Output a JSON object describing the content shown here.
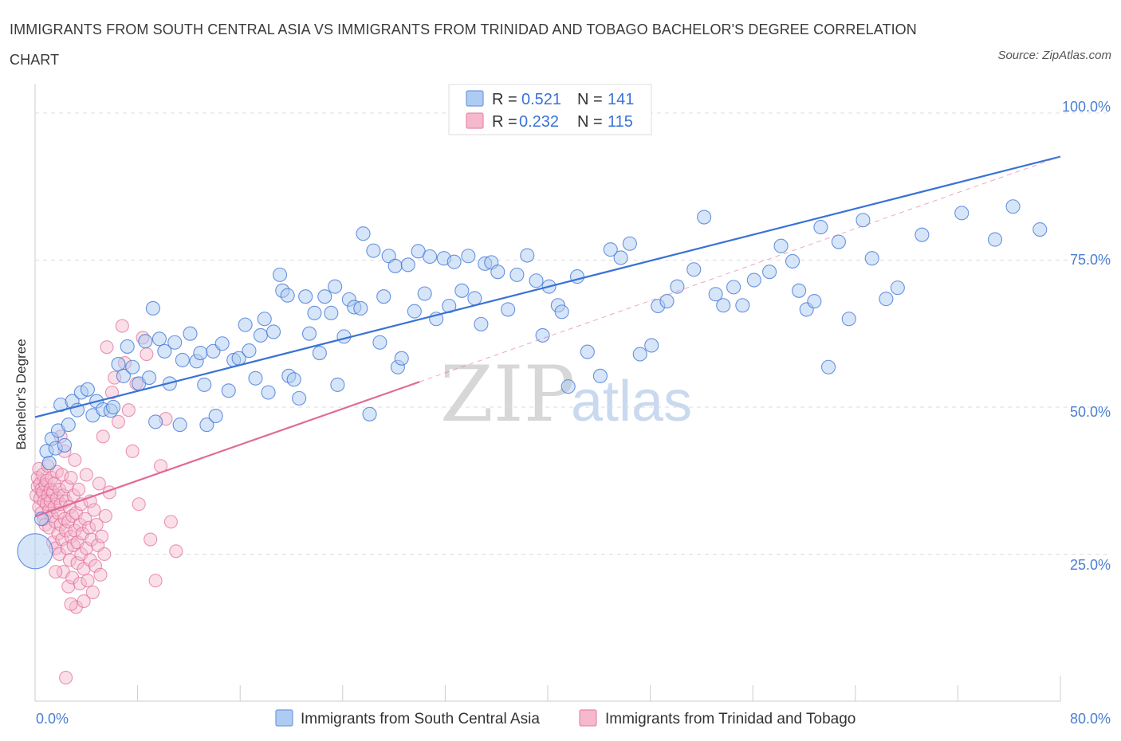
{
  "title": "IMMIGRANTS FROM SOUTH CENTRAL ASIA VS IMMIGRANTS FROM TRINIDAD AND TOBAGO BACHELOR'S DEGREE CORRELATION CHART",
  "source": "Source: ZipAtlas.com",
  "colors": {
    "blue": "#3a72d6",
    "blue_fill": "#aecbf2",
    "pink": "#e06b98",
    "pink_fill": "#f5b8cc",
    "tick_text": "#4a7fd4",
    "grid": "#dddddd"
  },
  "legend": {
    "rows": [
      {
        "r_label": "R =",
        "r_value": "0.521",
        "n_label": "N =",
        "n_value": "141"
      },
      {
        "r_label": "R =",
        "r_value": "0.232",
        "n_label": "N =",
        "n_value": "115"
      }
    ]
  },
  "bottom_legend": {
    "series1": "Immigrants from South Central Asia",
    "series2": "Immigrants from Trinidad and Tobago"
  },
  "watermark": {
    "part1": "ZIP",
    "part2": "atlas"
  },
  "chart_data": {
    "type": "scatter",
    "title": "IMMIGRANTS FROM SOUTH CENTRAL ASIA VS IMMIGRANTS FROM TRINIDAD AND TOBAGO BACHELOR'S DEGREE CORRELATION CHART",
    "xlabel": "",
    "ylabel": "Bachelor's Degree",
    "xlim": [
      0,
      80
    ],
    "ylim": [
      0,
      105
    ],
    "x_tick_labels": [
      "0.0%",
      "80.0%"
    ],
    "y_tick_labels": [
      "25.0%",
      "50.0%",
      "75.0%",
      "100.0%"
    ],
    "y_ticks": [
      25,
      50,
      75,
      100
    ],
    "grid": true,
    "legend_position": "top-center",
    "series": [
      {
        "name": "Immigrants from South Central Asia",
        "color": "#3a72d6",
        "R": 0.521,
        "N": 141,
        "trend": {
          "x": [
            0,
            80
          ],
          "y": [
            48.3,
            92.6
          ],
          "dashed_x_to": null
        },
        "points": [
          [
            0,
            25.5
          ],
          [
            0.5,
            31
          ],
          [
            0.9,
            42.5
          ],
          [
            1.1,
            40.5
          ],
          [
            1.3,
            44.6
          ],
          [
            1.6,
            43
          ],
          [
            1.8,
            46
          ],
          [
            2,
            50.4
          ],
          [
            2.3,
            43.5
          ],
          [
            2.6,
            47
          ],
          [
            2.9,
            51
          ],
          [
            3.3,
            49.5
          ],
          [
            3.6,
            52.5
          ],
          [
            4.1,
            53
          ],
          [
            4.5,
            48.6
          ],
          [
            4.8,
            51
          ],
          [
            5.3,
            49.6
          ],
          [
            5.9,
            49.4
          ],
          [
            6.1,
            50
          ],
          [
            6.5,
            57.3
          ],
          [
            6.9,
            55.3
          ],
          [
            7.2,
            60.3
          ],
          [
            7.6,
            56.8
          ],
          [
            8.1,
            54
          ],
          [
            8.6,
            61.2
          ],
          [
            8.9,
            55
          ],
          [
            9.2,
            66.8
          ],
          [
            9.4,
            47.5
          ],
          [
            9.7,
            61.6
          ],
          [
            10.1,
            59.5
          ],
          [
            10.5,
            54
          ],
          [
            10.9,
            61
          ],
          [
            11.3,
            47
          ],
          [
            11.5,
            58
          ],
          [
            12.1,
            62.5
          ],
          [
            12.6,
            57.8
          ],
          [
            12.9,
            59.2
          ],
          [
            13.2,
            53.8
          ],
          [
            13.4,
            47
          ],
          [
            13.9,
            59.5
          ],
          [
            14.1,
            48.5
          ],
          [
            14.6,
            60.8
          ],
          [
            15.1,
            52.8
          ],
          [
            15.5,
            58
          ],
          [
            15.9,
            58.3
          ],
          [
            16.4,
            64
          ],
          [
            16.7,
            59.6
          ],
          [
            17.2,
            54.9
          ],
          [
            17.6,
            62.2
          ],
          [
            17.9,
            65
          ],
          [
            18.2,
            52.5
          ],
          [
            18.6,
            62.8
          ],
          [
            19.1,
            72.5
          ],
          [
            19.3,
            69.8
          ],
          [
            19.7,
            69
          ],
          [
            19.8,
            55.3
          ],
          [
            20.2,
            54.7
          ],
          [
            20.6,
            51.5
          ],
          [
            21.1,
            68.8
          ],
          [
            21.4,
            62.5
          ],
          [
            21.8,
            66
          ],
          [
            22.2,
            59.2
          ],
          [
            22.6,
            68.8
          ],
          [
            23.1,
            66
          ],
          [
            23.4,
            70.5
          ],
          [
            23.6,
            53.8
          ],
          [
            24.1,
            62
          ],
          [
            24.5,
            68.3
          ],
          [
            24.9,
            67
          ],
          [
            25.4,
            66.8
          ],
          [
            25.6,
            79.5
          ],
          [
            26.1,
            48.8
          ],
          [
            26.4,
            76.6
          ],
          [
            26.9,
            61
          ],
          [
            27.2,
            68.8
          ],
          [
            27.6,
            75.7
          ],
          [
            28.1,
            74
          ],
          [
            28.3,
            56.8
          ],
          [
            28.6,
            58.3
          ],
          [
            29.1,
            74.2
          ],
          [
            29.6,
            66.3
          ],
          [
            29.9,
            76.5
          ],
          [
            30.4,
            69.3
          ],
          [
            30.8,
            75.6
          ],
          [
            31.3,
            65
          ],
          [
            31.9,
            75.3
          ],
          [
            32.3,
            67.2
          ],
          [
            32.7,
            74.7
          ],
          [
            33.3,
            69.8
          ],
          [
            33.8,
            75.7
          ],
          [
            34.3,
            68.5
          ],
          [
            34.8,
            64.1
          ],
          [
            35.1,
            74.4
          ],
          [
            35.6,
            74.6
          ],
          [
            36.1,
            73
          ],
          [
            36.9,
            66.6
          ],
          [
            37.6,
            72.5
          ],
          [
            38.4,
            75.8
          ],
          [
            39.1,
            71.5
          ],
          [
            39.6,
            62.2
          ],
          [
            40.1,
            70.5
          ],
          [
            40.8,
            67.3
          ],
          [
            41.1,
            66.2
          ],
          [
            41.6,
            53.5
          ],
          [
            42.3,
            72.2
          ],
          [
            43.1,
            59.4
          ],
          [
            44.1,
            55.3
          ],
          [
            44.9,
            76.8
          ],
          [
            45.7,
            75.4
          ],
          [
            46.4,
            77.8
          ],
          [
            47.2,
            59
          ],
          [
            48.1,
            60.5
          ],
          [
            48.6,
            67.2
          ],
          [
            49.3,
            68
          ],
          [
            50.1,
            70.5
          ],
          [
            51.4,
            73.4
          ],
          [
            52.2,
            82.3
          ],
          [
            53.1,
            69.2
          ],
          [
            53.7,
            67.3
          ],
          [
            54.5,
            70.4
          ],
          [
            55.2,
            67.3
          ],
          [
            56.1,
            71.6
          ],
          [
            57.3,
            73
          ],
          [
            58.2,
            77.4
          ],
          [
            59.1,
            74.8
          ],
          [
            59.6,
            69.8
          ],
          [
            60.2,
            66.6
          ],
          [
            60.8,
            68
          ],
          [
            61.3,
            80.6
          ],
          [
            61.9,
            56.8
          ],
          [
            62.7,
            78.1
          ],
          [
            63.5,
            65
          ],
          [
            64.6,
            81.8
          ],
          [
            65.3,
            75.3
          ],
          [
            66.4,
            68.4
          ],
          [
            67.3,
            70.3
          ],
          [
            69.2,
            79.3
          ],
          [
            72.3,
            83
          ],
          [
            74.9,
            78.5
          ],
          [
            76.3,
            84.1
          ],
          [
            78.4,
            80.2
          ]
        ]
      },
      {
        "name": "Immigrants from Trinidad and Tobago",
        "color": "#e06b98",
        "R": 0.232,
        "N": 115,
        "trend": {
          "x": [
            0,
            30
          ],
          "y": [
            31.4,
            54.3
          ],
          "dashed_x_to": 80,
          "dashed_y_end": 92.6
        },
        "points": [
          [
            0.1,
            35
          ],
          [
            0.2,
            36.5
          ],
          [
            0.2,
            38
          ],
          [
            0.3,
            33
          ],
          [
            0.3,
            39.5
          ],
          [
            0.4,
            34.5
          ],
          [
            0.4,
            37
          ],
          [
            0.5,
            36
          ],
          [
            0.5,
            32
          ],
          [
            0.6,
            35.5
          ],
          [
            0.6,
            38.5
          ],
          [
            0.7,
            31
          ],
          [
            0.7,
            34
          ],
          [
            0.8,
            36.8
          ],
          [
            0.8,
            30
          ],
          [
            0.9,
            33.5
          ],
          [
            0.9,
            37.5
          ],
          [
            1.0,
            35
          ],
          [
            1.0,
            40
          ],
          [
            1.1,
            32.5
          ],
          [
            1.1,
            29.5
          ],
          [
            1.2,
            36
          ],
          [
            1.2,
            34
          ],
          [
            1.3,
            38
          ],
          [
            1.3,
            31.5
          ],
          [
            1.4,
            27
          ],
          [
            1.4,
            35.5
          ],
          [
            1.5,
            33
          ],
          [
            1.5,
            37
          ],
          [
            1.6,
            30.5
          ],
          [
            1.6,
            26
          ],
          [
            1.7,
            34.5
          ],
          [
            1.7,
            39
          ],
          [
            1.8,
            28.5
          ],
          [
            1.8,
            32
          ],
          [
            1.9,
            36
          ],
          [
            1.9,
            25
          ],
          [
            2.0,
            30
          ],
          [
            2.0,
            33.5
          ],
          [
            2.1,
            38.5
          ],
          [
            2.1,
            27.5
          ],
          [
            2.2,
            35
          ],
          [
            2.2,
            22
          ],
          [
            2.3,
            31
          ],
          [
            2.3,
            42.5
          ],
          [
            2.4,
            29
          ],
          [
            2.4,
            34
          ],
          [
            2.5,
            26
          ],
          [
            2.5,
            36.5
          ],
          [
            2.6,
            19.5
          ],
          [
            2.6,
            30.5
          ],
          [
            2.7,
            33
          ],
          [
            2.7,
            24
          ],
          [
            2.8,
            28
          ],
          [
            2.8,
            38
          ],
          [
            2.9,
            31.5
          ],
          [
            2.9,
            21
          ],
          [
            3.0,
            35
          ],
          [
            3.0,
            26.5
          ],
          [
            3.1,
            29
          ],
          [
            3.1,
            41
          ],
          [
            3.2,
            32
          ],
          [
            3.2,
            16
          ],
          [
            3.3,
            23.5
          ],
          [
            3.3,
            27
          ],
          [
            3.4,
            36
          ],
          [
            3.5,
            30
          ],
          [
            3.5,
            20
          ],
          [
            3.6,
            33.5
          ],
          [
            3.6,
            25
          ],
          [
            3.7,
            28.5
          ],
          [
            3.8,
            22.5
          ],
          [
            3.8,
            17
          ],
          [
            3.9,
            31
          ],
          [
            4.0,
            26
          ],
          [
            4.0,
            38.5
          ],
          [
            4.1,
            20.5
          ],
          [
            4.2,
            29.5
          ],
          [
            4.3,
            24
          ],
          [
            4.3,
            34
          ],
          [
            4.4,
            27.5
          ],
          [
            4.5,
            18.5
          ],
          [
            4.6,
            32.5
          ],
          [
            4.7,
            23
          ],
          [
            4.8,
            30
          ],
          [
            4.9,
            26.5
          ],
          [
            5.0,
            37
          ],
          [
            5.1,
            21.5
          ],
          [
            5.2,
            28
          ],
          [
            5.3,
            45
          ],
          [
            5.4,
            25
          ],
          [
            5.5,
            31.5
          ],
          [
            5.6,
            60.2
          ],
          [
            5.8,
            35.5
          ],
          [
            6.0,
            52.5
          ],
          [
            6.2,
            55
          ],
          [
            6.5,
            47.5
          ],
          [
            6.8,
            63.8
          ],
          [
            7.0,
            57.5
          ],
          [
            7.3,
            49.5
          ],
          [
            7.6,
            42.5
          ],
          [
            7.9,
            54
          ],
          [
            8.1,
            33.5
          ],
          [
            8.4,
            61.8
          ],
          [
            8.7,
            59
          ],
          [
            9.0,
            27.5
          ],
          [
            9.4,
            20.5
          ],
          [
            9.8,
            40
          ],
          [
            10.2,
            48
          ],
          [
            10.6,
            30.5
          ],
          [
            11.0,
            25.5
          ],
          [
            1.6,
            22
          ],
          [
            2.0,
            45
          ],
          [
            2.4,
            4
          ],
          [
            2.8,
            16.5
          ]
        ]
      }
    ]
  }
}
